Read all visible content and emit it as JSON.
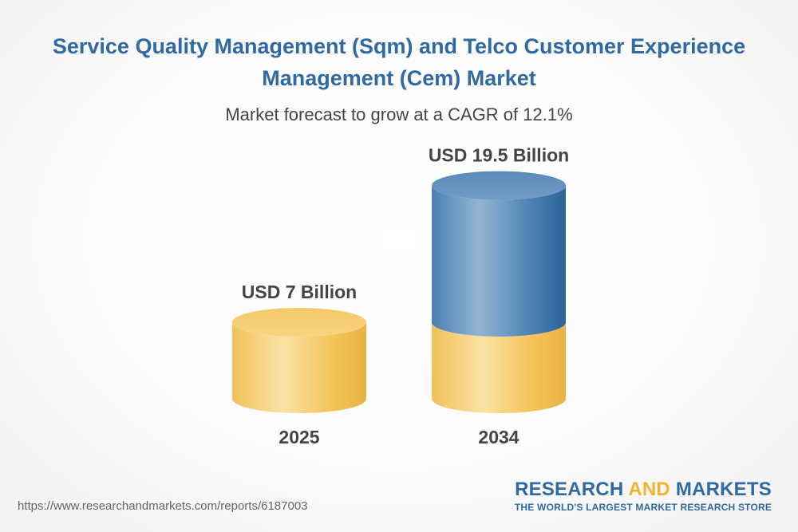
{
  "title": "Service Quality Management (Sqm) and Telco Customer Experience Management (Cem) Market",
  "subtitle": "Market forecast to grow at a CAGR of 12.1%",
  "source_url": "https://www.researchandmarkets.com/reports/6187003",
  "logo": {
    "word1": "RESEARCH",
    "word2": "AND",
    "word3": "MARKETS",
    "tagline": "THE WORLD'S LARGEST MARKET RESEARCH STORE"
  },
  "colors": {
    "title": "#2f6aa3",
    "base_segment": "#f2c35a",
    "growth_segment": "#4f86b7",
    "text": "#444444",
    "logo_accent": "#f0b52e"
  },
  "chart_data": {
    "type": "bar",
    "style": "3d-cylinder",
    "title": "Service Quality Management (Sqm) and Telco Customer Experience Management (Cem) Market",
    "subtitle": "Market forecast to grow at a CAGR of 12.1%",
    "categories": [
      "2025",
      "2034"
    ],
    "values": [
      7,
      19.5
    ],
    "value_labels": [
      "USD 7 Billion",
      "USD 19.5 Billion"
    ],
    "unit": "USD Billion",
    "cagr": "12.1%",
    "grid": false,
    "legend": "none"
  }
}
